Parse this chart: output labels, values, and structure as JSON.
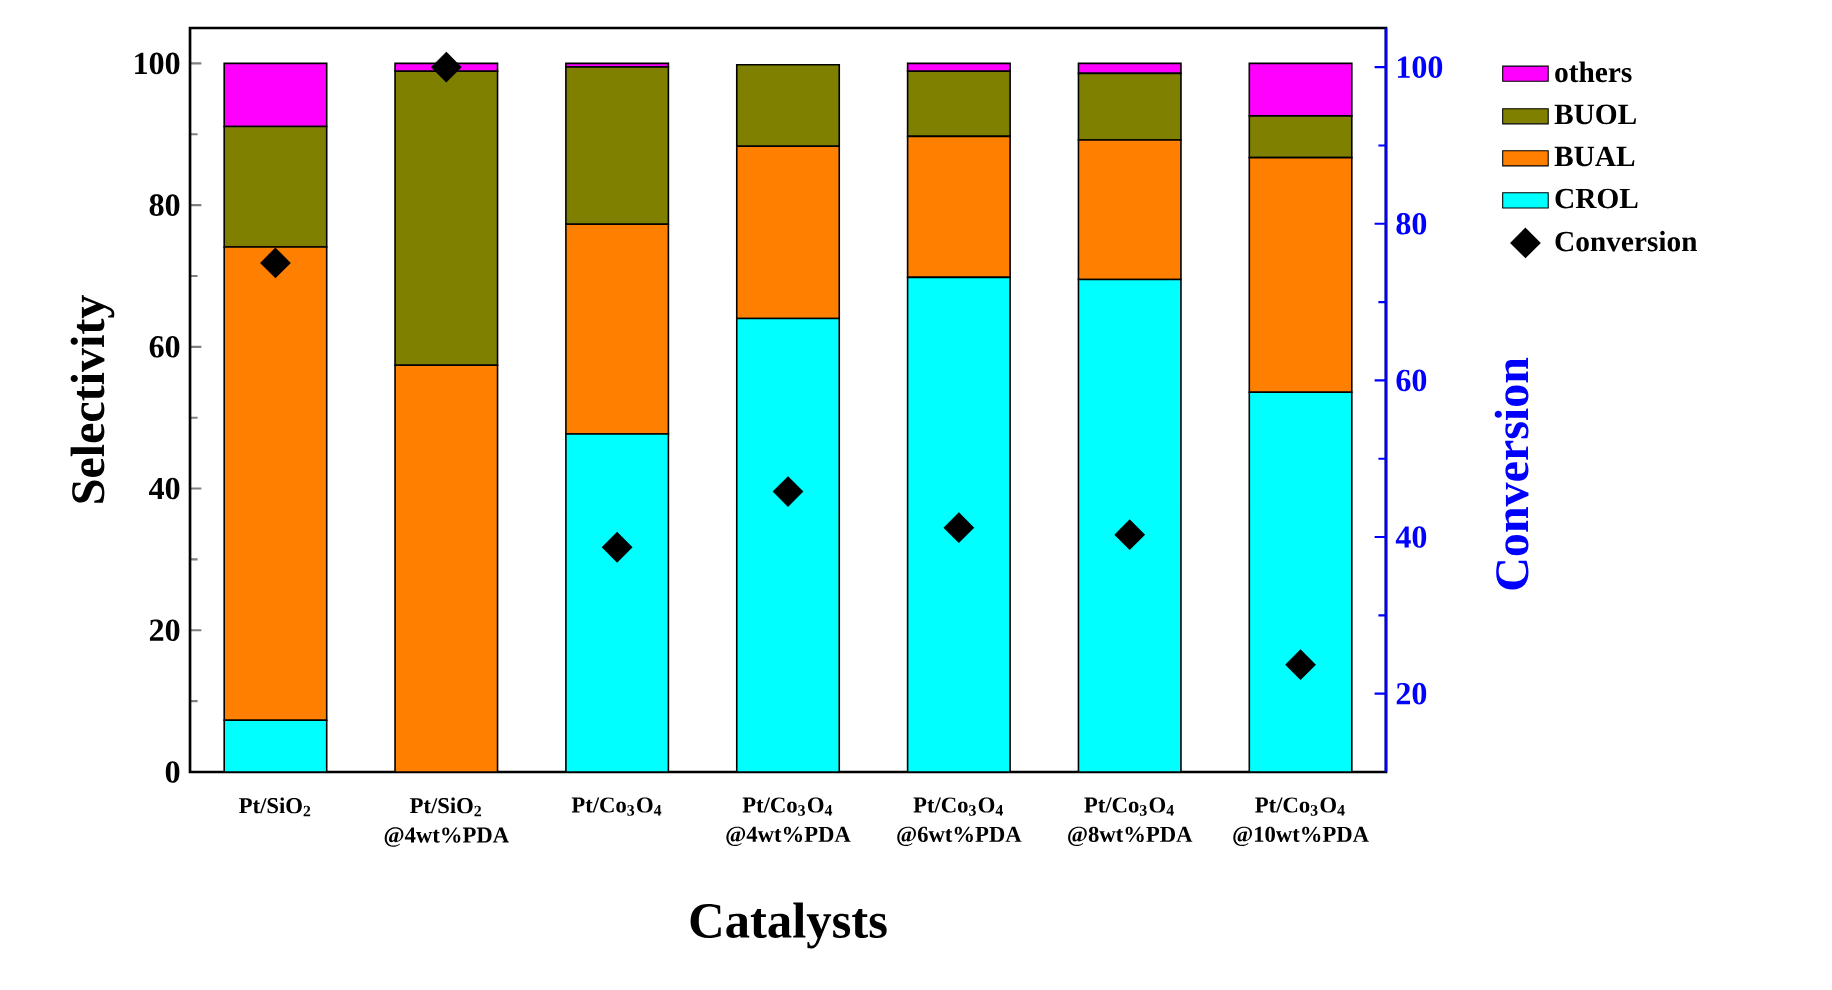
{
  "chart_data": {
    "type": "bar",
    "stacked": true,
    "categories": [
      "Pt/SiO$_{2}$",
      "Pt/SiO$_{2}$ @4wt%PDA",
      "Pt/Co$_{3}$O$_{4}$",
      "Pt/Co$_{3}$O$_{4}$ @4wt%PDA",
      "Pt/Co$_{3}$O$_{4}$ @6wt%PDA",
      "Pt/Co$_{3}$O$_{4}$ @8wt%PDA",
      "Pt/Co$_{3}$O$_{4}$ @10wt%PDA"
    ],
    "series": [
      {
        "name": "CROL",
        "color": "#00ffff",
        "values": [
          7.3,
          0,
          47.7,
          64,
          69.8,
          69.5,
          53.6
        ]
      },
      {
        "name": "BUAL",
        "color": "#ff8000",
        "values": [
          66.8,
          57.4,
          29.6,
          24.3,
          19.9,
          19.7,
          33.1
        ]
      },
      {
        "name": "BUOL",
        "color": "#808000",
        "values": [
          17,
          41.5,
          22.2,
          11.5,
          9.2,
          9.4,
          5.9
        ]
      },
      {
        "name": "others",
        "color": "#ff00ff",
        "values": [
          8.9,
          1.1,
          0.5,
          0,
          1.1,
          1.4,
          7.4
        ]
      },
      {
        "name": "Conversion",
        "type": "scatter",
        "axis": "y2",
        "marker": "diamond",
        "color": "#000000",
        "values": [
          75,
          100,
          38.7,
          45.8,
          41.2,
          40.3,
          23.7
        ]
      }
    ],
    "xlabel": "Catalysts",
    "ylabel": "Selectivity",
    "y2label": "Conversion",
    "ylim": [
      0,
      105
    ],
    "yticks": [
      0,
      20,
      40,
      60,
      80,
      100
    ],
    "y2lim": [
      10,
      105
    ],
    "y2ticks": [
      20,
      40,
      60,
      80,
      100
    ],
    "legend": "right",
    "grid": false
  }
}
